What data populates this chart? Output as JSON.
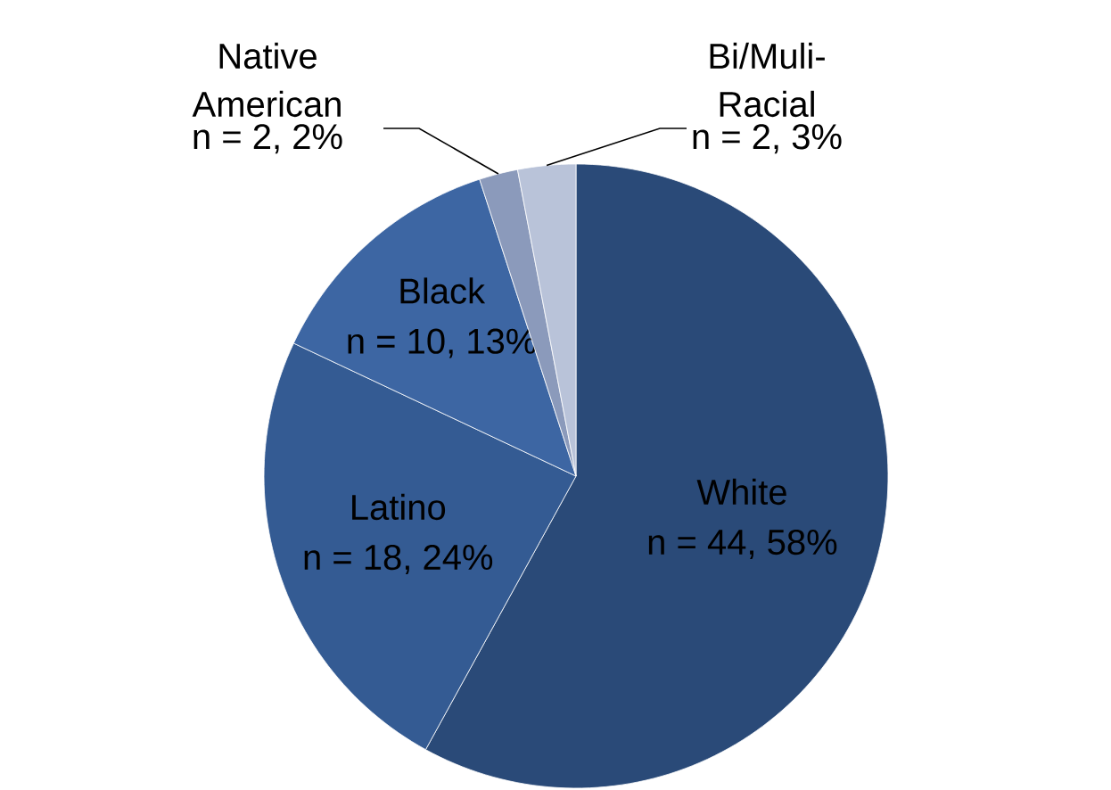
{
  "chart_data": {
    "type": "pie",
    "categories": [
      "White",
      "Latino",
      "Black",
      "Native American",
      "Bi/Muli-Racial"
    ],
    "values": [
      58,
      24,
      13,
      2,
      3
    ],
    "value_labels": [
      "n = 44, 58%",
      "n = 18, 24%",
      "n = 10, 13%",
      "n = 2, 2%",
      "n = 2, 3%"
    ],
    "colors": [
      "#2a4a78",
      "#345b93",
      "#3d66a3",
      "#8b9abb",
      "#b9c3d9"
    ]
  }
}
